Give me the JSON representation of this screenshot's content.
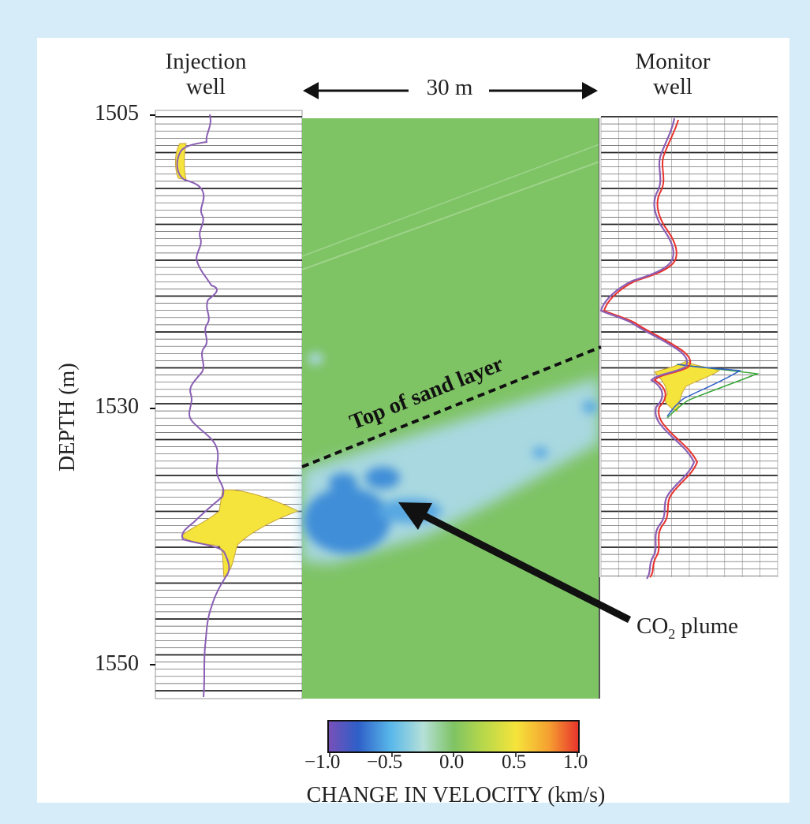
{
  "labels": {
    "injection_well": [
      "Injection",
      "well"
    ],
    "monitor_well": [
      "Monitor",
      "well"
    ],
    "distance": "30 m",
    "depth_axis": "DEPTH (m)",
    "depth_ticks": [
      "1505",
      "1530",
      "1550"
    ],
    "top_of_sand": "Top of sand layer",
    "plume_prefix": "CO",
    "plume_sub": "2",
    "plume_suffix": " plume",
    "colorbar_title": "CHANGE IN VELOCITY (km/s)",
    "colorbar_ticks": [
      "−1.0",
      "−0.5",
      "0.0",
      "0.5",
      "1.0"
    ]
  },
  "colors": {
    "page_background": "#d6ecf8",
    "panel_background": "#ffffff",
    "background_field": "#7ec364",
    "plume_light": "#a9d8e0",
    "plume_dark": "#3f8ed8",
    "fill_highlight": "#f5e43b",
    "colormap": [
      "#7a4fb8",
      "#2e5fc8",
      "#59b8ea",
      "#b6e0d8",
      "#7ec364",
      "#b8d84a",
      "#f5e43b",
      "#f5a030",
      "#e8322c"
    ]
  },
  "colorbar": {
    "range": [
      -1.0,
      1.0
    ]
  }
}
